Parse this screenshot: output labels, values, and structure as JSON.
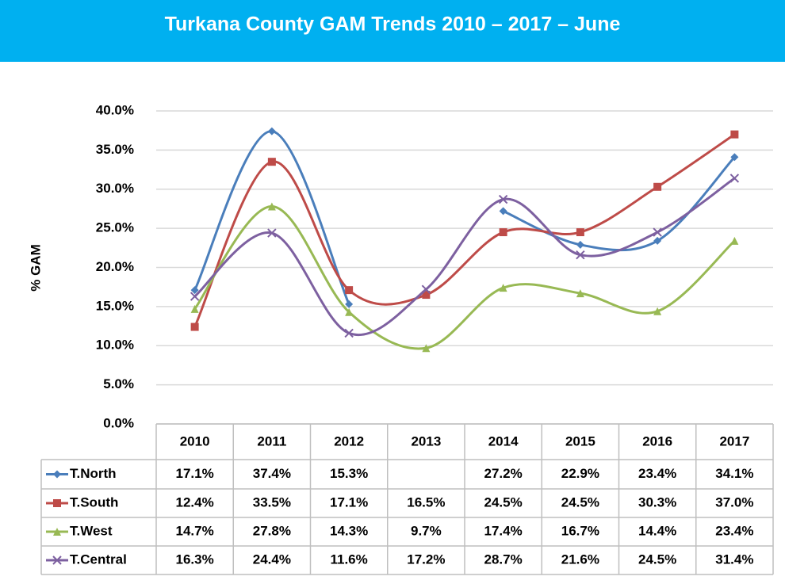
{
  "chart_data": {
    "type": "line",
    "title": "Turkana County GAM Trends 2010 – 2017 – June",
    "y_label": "% GAM",
    "categories": [
      "2010",
      "2011",
      "2012",
      "2013",
      "2014",
      "2015",
      "2016",
      "2017"
    ],
    "ylim": [
      0,
      40
    ],
    "yticks": [
      {
        "value": 0,
        "label": "0.0%"
      },
      {
        "value": 5,
        "label": "5.0%"
      },
      {
        "value": 10,
        "label": "10.0%"
      },
      {
        "value": 15,
        "label": "15.0%"
      },
      {
        "value": 20,
        "label": "20.0%"
      },
      {
        "value": 25,
        "label": "25.0%"
      },
      {
        "value": 30,
        "label": "30.0%"
      },
      {
        "value": 35,
        "label": "35.0%"
      },
      {
        "value": 40,
        "label": "40.0%"
      }
    ],
    "grid": true,
    "series": [
      {
        "name": "T.North",
        "color": "#4a7ebb",
        "marker": "diamond",
        "values": [
          17.1,
          37.4,
          15.3,
          null,
          27.2,
          22.9,
          23.4,
          34.1
        ],
        "value_labels": [
          "17.1%",
          "37.4%",
          "15.3%",
          null,
          "27.2%",
          "22.9%",
          "23.4%",
          "34.1%"
        ]
      },
      {
        "name": "T.South",
        "color": "#be4b48",
        "marker": "square",
        "values": [
          12.4,
          33.5,
          17.1,
          16.5,
          24.5,
          24.5,
          30.3,
          37.0
        ],
        "value_labels": [
          "12.4%",
          "33.5%",
          "17.1%",
          "16.5%",
          "24.5%",
          "24.5%",
          "30.3%",
          "37.0%"
        ]
      },
      {
        "name": "T.West",
        "color": "#98b954",
        "marker": "triangle",
        "values": [
          14.7,
          27.8,
          14.3,
          9.7,
          17.4,
          16.7,
          14.4,
          23.4
        ],
        "value_labels": [
          "14.7%",
          "27.8%",
          "14.3%",
          "9.7%",
          "17.4%",
          "16.7%",
          "14.4%",
          "23.4%"
        ]
      },
      {
        "name": "T.Central",
        "color": "#7d60a0",
        "marker": "x",
        "values": [
          16.3,
          24.4,
          11.6,
          17.2,
          28.7,
          21.6,
          24.5,
          31.4
        ],
        "value_labels": [
          "16.3%",
          "24.4%",
          "11.6%",
          "17.2%",
          "28.7%",
          "21.6%",
          "24.5%",
          "31.4%"
        ]
      }
    ]
  }
}
